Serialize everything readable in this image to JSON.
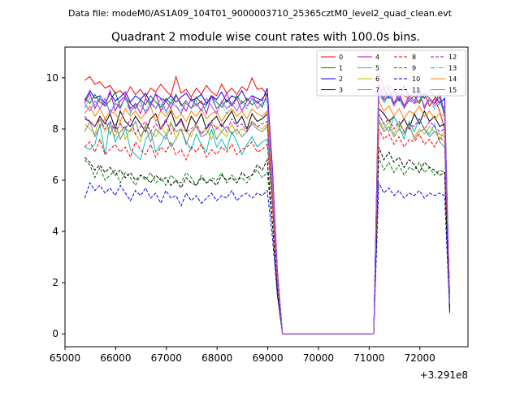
{
  "figure": {
    "suptitle": "Data file: modeM0/AS1A09_104T01_9000003710_25365cztM0_level2_quad_clean.evt",
    "title": "Quadrant 2 module wise count rates with 100.0s bins.",
    "x_offset_text": "+3.291e8"
  },
  "chart_data": {
    "type": "line",
    "title": "Quadrant 2 module wise count rates with 100.0s bins.",
    "xlabel": "",
    "ylabel": "",
    "x_offset": 329100000,
    "xlim": [
      65000,
      72950
    ],
    "ylim": [
      -0.5,
      11.2
    ],
    "xticks": [
      65000,
      66000,
      67000,
      68000,
      69000,
      70000,
      71000,
      72000
    ],
    "yticks": [
      0,
      2,
      4,
      6,
      8,
      10
    ],
    "grid": false,
    "legend": {
      "position": "top-right",
      "columns": 4
    },
    "x": [
      65390,
      65490,
      65590,
      65690,
      65790,
      65890,
      65990,
      66090,
      66190,
      66290,
      66390,
      66490,
      66590,
      66690,
      66790,
      66890,
      66990,
      67090,
      67190,
      67290,
      67390,
      67490,
      67590,
      67690,
      67790,
      67890,
      67990,
      68090,
      68190,
      68290,
      68390,
      68490,
      68590,
      68690,
      68790,
      68890,
      68990,
      69090,
      69190,
      69290,
      71090,
      71190,
      71290,
      71390,
      71490,
      71590,
      71690,
      71790,
      71890,
      71990,
      72090,
      72190,
      72290,
      72390,
      72490,
      72590
    ],
    "series": [
      {
        "name": "0",
        "color": "#ff0000",
        "dash": "solid",
        "values": [
          9.9,
          10.05,
          9.75,
          9.85,
          9.6,
          9.7,
          9.4,
          9.5,
          9.3,
          9.65,
          9.35,
          9.55,
          9.25,
          9.6,
          9.45,
          9.75,
          9.5,
          9.3,
          10.05,
          9.4,
          9.55,
          9.25,
          9.6,
          9.35,
          9.7,
          9.45,
          9.3,
          9.75,
          9.4,
          9.6,
          9.35,
          9.65,
          9.5,
          10.0,
          9.55,
          9.6,
          9.3,
          6.5,
          2.5,
          0,
          0,
          10.2,
          9.6,
          9.7,
          9.5,
          9.4,
          9.3,
          9.2,
          9.0,
          9.1,
          9.4,
          8.9,
          9.2,
          8.7,
          8.0,
          1.5
        ]
      },
      {
        "name": "1",
        "color": "#008000",
        "dash": "solid",
        "values": [
          9.2,
          9.0,
          9.35,
          9.05,
          8.9,
          9.1,
          9.45,
          8.85,
          9.25,
          9.0,
          8.8,
          9.15,
          8.95,
          9.3,
          9.05,
          8.85,
          9.2,
          9.0,
          9.35,
          8.9,
          9.1,
          8.8,
          9.25,
          9.0,
          8.95,
          9.3,
          9.05,
          8.85,
          9.15,
          8.9,
          9.3,
          9.0,
          9.2,
          8.95,
          9.1,
          8.85,
          9.4,
          6.3,
          2.3,
          0,
          0,
          9.4,
          9.1,
          9.3,
          9.0,
          9.2,
          8.9,
          9.1,
          9.3,
          9.0,
          9.4,
          9.2,
          9.0,
          9.25,
          8.5,
          1.2
        ]
      },
      {
        "name": "2",
        "color": "#0000ff",
        "dash": "solid",
        "values": [
          9.1,
          9.5,
          9.2,
          9.3,
          9.0,
          9.4,
          9.1,
          9.25,
          9.45,
          9.05,
          9.3,
          9.15,
          9.4,
          9.0,
          9.35,
          9.2,
          9.1,
          9.3,
          9.05,
          9.25,
          9.4,
          9.1,
          9.2,
          9.35,
          9.0,
          9.3,
          9.15,
          9.45,
          9.05,
          9.3,
          9.2,
          9.5,
          9.1,
          9.3,
          9.2,
          9.1,
          9.6,
          6.5,
          2.4,
          0,
          0,
          9.3,
          9.6,
          9.2,
          9.5,
          9.1,
          9.7,
          9.3,
          9.4,
          9.6,
          9.2,
          9.5,
          9.3,
          9.0,
          9.2,
          1.3
        ]
      },
      {
        "name": "3",
        "color": "#000000",
        "dash": "solid",
        "values": [
          8.4,
          8.3,
          8.1,
          8.5,
          8.2,
          8.6,
          8.0,
          8.7,
          8.3,
          8.1,
          8.5,
          8.2,
          7.9,
          8.4,
          8.6,
          8.0,
          8.3,
          8.7,
          8.1,
          8.4,
          7.9,
          8.5,
          8.2,
          8.6,
          8.0,
          8.3,
          8.5,
          8.1,
          8.4,
          8.7,
          8.2,
          8.5,
          8.0,
          8.6,
          8.3,
          8.4,
          8.6,
          5.8,
          2.2,
          0,
          0,
          8.8,
          8.6,
          8.3,
          8.5,
          8.1,
          8.4,
          8.0,
          8.6,
          8.2,
          8.7,
          8.3,
          8.5,
          8.1,
          8.2,
          1.2
        ]
      },
      {
        "name": "4",
        "color": "#bf00bf",
        "dash": "solid",
        "values": [
          9.0,
          9.4,
          8.8,
          9.2,
          8.9,
          9.5,
          8.7,
          9.1,
          9.3,
          8.8,
          9.0,
          8.6,
          9.2,
          8.9,
          9.4,
          8.7,
          9.1,
          8.8,
          9.3,
          9.0,
          8.7,
          9.2,
          8.9,
          9.1,
          8.6,
          9.3,
          8.8,
          9.0,
          9.4,
          8.9,
          9.2,
          8.7,
          9.1,
          9.3,
          9.0,
          9.2,
          9.4,
          6.3,
          2.4,
          0,
          0,
          9.8,
          9.2,
          9.6,
          9.0,
          9.4,
          8.9,
          9.3,
          9.1,
          9.5,
          8.8,
          9.2,
          9.0,
          9.4,
          8.6,
          1.3
        ]
      },
      {
        "name": "5",
        "color": "#00bfbf",
        "dash": "solid",
        "values": [
          7.3,
          7.2,
          7.4,
          8.2,
          7.0,
          8.3,
          7.5,
          7.9,
          8.1,
          7.2,
          7.0,
          6.8,
          7.6,
          7.9,
          7.1,
          7.4,
          7.8,
          7.3,
          7.6,
          8.0,
          7.5,
          7.2,
          7.8,
          7.4,
          7.1,
          8.0,
          7.3,
          7.6,
          7.2,
          7.9,
          7.5,
          7.0,
          7.4,
          7.7,
          7.3,
          7.5,
          7.6,
          5.2,
          2.0,
          0,
          0,
          8.6,
          8.2,
          7.9,
          8.5,
          8.1,
          7.6,
          8.3,
          7.9,
          8.4,
          8.0,
          7.8,
          8.2,
          7.5,
          7.3,
          1.1
        ]
      },
      {
        "name": "6",
        "color": "#bfbf00",
        "dash": "solid",
        "values": [
          8.2,
          8.0,
          7.8,
          8.4,
          7.9,
          8.1,
          7.7,
          8.3,
          7.6,
          8.0,
          7.8,
          7.5,
          8.2,
          7.9,
          7.7,
          8.1,
          7.8,
          8.3,
          7.6,
          8.0,
          7.9,
          7.7,
          8.2,
          7.8,
          8.0,
          7.6,
          8.1,
          7.9,
          7.7,
          8.2,
          7.8,
          8.0,
          7.9,
          8.3,
          8.1,
          8.0,
          8.2,
          5.6,
          2.1,
          0,
          0,
          8.4,
          8.0,
          8.3,
          7.8,
          8.2,
          7.9,
          8.1,
          7.7,
          8.0,
          7.8,
          8.1,
          7.9,
          7.6,
          7.9,
          1.1
        ]
      },
      {
        "name": "7",
        "color": "#808080",
        "dash": "solid",
        "values": [
          7.9,
          8.3,
          7.7,
          8.1,
          8.4,
          7.8,
          8.2,
          7.6,
          8.0,
          7.9,
          8.3,
          7.7,
          8.1,
          7.5,
          8.0,
          7.8,
          7.6,
          8.2,
          7.9,
          8.0,
          7.4,
          7.9,
          8.1,
          7.7,
          7.8,
          8.2,
          7.6,
          7.9,
          8.1,
          7.8,
          8.0,
          7.7,
          7.9,
          8.2,
          8.0,
          7.9,
          8.1,
          5.5,
          2.1,
          0,
          0,
          8.3,
          7.9,
          8.1,
          7.7,
          8.0,
          7.8,
          8.2,
          7.6,
          7.9,
          8.0,
          7.7,
          7.9,
          7.8,
          7.7,
          1.1
        ]
      },
      {
        "name": "8",
        "color": "#ff0000",
        "dash": "dashed",
        "values": [
          7.3,
          7.5,
          7.1,
          7.6,
          7.0,
          7.2,
          7.4,
          7.1,
          7.3,
          6.9,
          7.5,
          7.2,
          7.0,
          7.4,
          6.9,
          7.3,
          7.1,
          7.5,
          7.0,
          7.2,
          6.8,
          7.3,
          7.1,
          7.4,
          6.9,
          7.2,
          7.0,
          7.3,
          7.1,
          7.4,
          7.0,
          7.2,
          7.3,
          7.5,
          7.1,
          7.2,
          7.4,
          5.0,
          1.9,
          0,
          0,
          8.0,
          7.6,
          7.8,
          7.4,
          7.7,
          7.3,
          7.6,
          7.5,
          7.8,
          7.4,
          7.6,
          7.3,
          7.7,
          7.5,
          1.0
        ]
      },
      {
        "name": "9",
        "color": "#008000",
        "dash": "dashed",
        "values": [
          6.8,
          6.6,
          6.1,
          6.5,
          6.0,
          6.2,
          6.4,
          5.9,
          6.3,
          6.1,
          5.8,
          6.2,
          6.0,
          6.3,
          5.9,
          6.1,
          5.8,
          6.2,
          6.0,
          5.9,
          6.3,
          6.1,
          5.8,
          6.2,
          5.9,
          6.1,
          6.0,
          6.3,
          5.9,
          6.2,
          6.0,
          6.1,
          5.9,
          6.2,
          6.4,
          6.1,
          6.3,
          4.3,
          1.6,
          0,
          0,
          6.9,
          6.4,
          6.7,
          6.3,
          6.6,
          6.2,
          6.5,
          6.4,
          6.7,
          6.3,
          6.5,
          6.2,
          6.4,
          6.3,
          0.9
        ]
      },
      {
        "name": "10",
        "color": "#0000ff",
        "dash": "dashed",
        "values": [
          5.3,
          5.9,
          5.6,
          5.8,
          5.5,
          5.7,
          5.4,
          5.8,
          5.5,
          5.2,
          5.6,
          5.4,
          5.7,
          5.3,
          5.5,
          5.1,
          5.6,
          5.3,
          5.4,
          5.0,
          5.5,
          5.2,
          5.4,
          5.1,
          5.3,
          5.5,
          5.2,
          5.4,
          5.3,
          5.6,
          5.2,
          5.4,
          5.5,
          5.3,
          5.5,
          5.4,
          5.6,
          3.8,
          1.5,
          0,
          0,
          5.9,
          5.5,
          5.7,
          5.4,
          5.6,
          5.3,
          5.5,
          5.4,
          5.6,
          5.3,
          5.5,
          5.4,
          5.5,
          5.4,
          0.8
        ]
      },
      {
        "name": "11",
        "color": "#000000",
        "dash": "dashed",
        "values": [
          6.9,
          6.7,
          6.4,
          6.6,
          6.3,
          6.5,
          6.2,
          6.4,
          6.1,
          6.3,
          6.0,
          6.2,
          6.1,
          5.9,
          6.2,
          6.0,
          6.1,
          5.8,
          6.0,
          5.7,
          6.1,
          5.9,
          5.8,
          6.1,
          5.9,
          6.0,
          5.8,
          6.2,
          6.0,
          6.1,
          5.9,
          6.3,
          6.1,
          6.2,
          6.6,
          6.4,
          6.8,
          4.4,
          1.6,
          0,
          0,
          7.3,
          6.8,
          7.1,
          6.7,
          6.9,
          6.5,
          6.8,
          6.6,
          6.3,
          6.7,
          6.5,
          6.4,
          6.2,
          6.3,
          0.9
        ]
      },
      {
        "name": "12",
        "color": "#bf00bf",
        "dash": "dashed",
        "values": [
          8.5,
          8.3,
          8.1,
          8.4,
          8.0,
          8.3,
          7.9,
          8.2,
          8.0,
          8.4,
          7.8,
          8.1,
          8.3,
          7.9,
          8.2,
          8.0,
          8.4,
          7.8,
          8.1,
          8.3,
          7.9,
          8.0,
          8.2,
          7.8,
          8.1,
          8.3,
          8.0,
          8.2,
          7.9,
          8.4,
          8.1,
          8.2,
          7.9,
          8.3,
          8.1,
          8.2,
          8.3,
          5.6,
          2.1,
          0,
          0,
          8.6,
          8.2,
          8.4,
          8.0,
          8.3,
          7.9,
          8.2,
          8.1,
          8.4,
          8.0,
          8.3,
          8.1,
          7.9,
          8.0,
          1.1
        ]
      },
      {
        "name": "13",
        "color": "#00bfbf",
        "dash": "dashdot",
        "values": [
          8.8,
          9.2,
          8.9,
          9.3,
          9.0,
          8.7,
          9.1,
          8.8,
          9.2,
          8.6,
          9.0,
          8.9,
          8.7,
          9.1,
          8.8,
          9.0,
          8.6,
          9.2,
          8.9,
          8.7,
          9.0,
          8.8,
          9.1,
          8.7,
          8.9,
          9.2,
          8.8,
          9.0,
          8.6,
          9.1,
          8.9,
          9.0,
          8.8,
          9.2,
          9.0,
          8.9,
          9.1,
          6.2,
          2.3,
          0,
          0,
          9.5,
          9.0,
          9.3,
          8.9,
          9.2,
          8.8,
          9.1,
          9.0,
          9.3,
          8.9,
          9.1,
          8.8,
          9.0,
          8.7,
          1.2
        ]
      },
      {
        "name": "14",
        "color": "#ff8000",
        "dash": "solid",
        "values": [
          8.6,
          8.9,
          8.5,
          8.8,
          8.4,
          8.7,
          8.6,
          8.3,
          8.8,
          8.5,
          8.7,
          8.4,
          8.6,
          8.9,
          8.3,
          8.7,
          8.5,
          8.8,
          8.4,
          8.6,
          8.3,
          8.7,
          8.5,
          8.8,
          8.4,
          8.6,
          8.7,
          8.3,
          8.6,
          8.8,
          8.5,
          8.7,
          8.4,
          8.8,
          8.6,
          8.5,
          8.7,
          5.9,
          2.2,
          0,
          0,
          9.1,
          8.7,
          8.9,
          8.5,
          8.8,
          8.4,
          8.7,
          8.6,
          8.9,
          8.5,
          8.7,
          8.4,
          8.6,
          8.5,
          1.2
        ]
      },
      {
        "name": "15",
        "color": "#a050ff",
        "dash": "solid",
        "values": [
          9.0,
          8.7,
          9.1,
          8.8,
          9.2,
          8.6,
          9.0,
          8.8,
          9.3,
          8.7,
          8.9,
          9.1,
          8.6,
          9.0,
          8.8,
          9.2,
          8.7,
          9.0,
          8.9,
          8.6,
          9.1,
          8.8,
          9.0,
          8.7,
          9.2,
          8.9,
          8.6,
          9.1,
          8.8,
          9.0,
          8.7,
          9.1,
          8.9,
          9.2,
          8.8,
          9.0,
          9.2,
          6.2,
          2.3,
          0,
          0,
          9.6,
          9.1,
          9.4,
          8.9,
          9.3,
          8.8,
          9.2,
          9.0,
          9.4,
          8.9,
          9.2,
          8.9,
          9.1,
          8.8,
          1.2
        ]
      }
    ]
  }
}
